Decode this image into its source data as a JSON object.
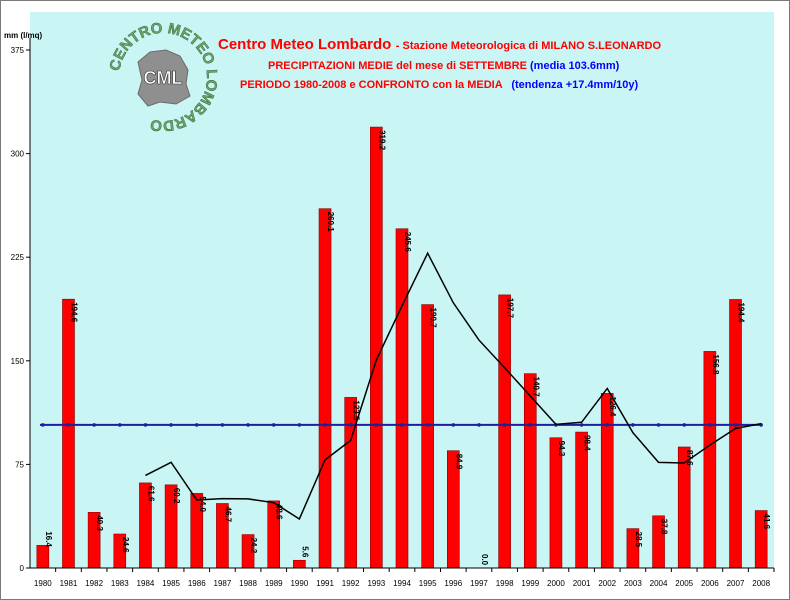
{
  "header": {
    "org": "Centro Meteo Lombardo",
    "station": "- Stazione Meteorologica di MILANO S.LEONARDO",
    "subtitle": "PRECIPITAZIONI MEDIE del mese di SETTEMBRE",
    "media_note": "(media 103.6mm)",
    "period": "PERIODO 1980-2008 e CONFRONTO con la MEDIA",
    "trend_note": "(tendenza +17.4mm/10y)"
  },
  "logo": {
    "ring_text": "CENTRO METEO LOMBARDO",
    "center_text": "CML"
  },
  "colors": {
    "bars": "#ff0000",
    "bar_outline": "#8b0000",
    "average_line": "#1f1f9e",
    "moving_avg": "#000000",
    "plot_bg": "#c9f5f4",
    "title_red": "#ff0000",
    "title_blue": "#0000ff"
  },
  "chart_data": {
    "type": "bar",
    "ylabel": "mm (l/mq)",
    "ylim": [
      0,
      375
    ],
    "yticks": [
      0,
      75,
      150,
      225,
      300,
      375
    ],
    "grid": false,
    "categories": [
      "1980",
      "1981",
      "1982",
      "1983",
      "1984",
      "1985",
      "1986",
      "1987",
      "1988",
      "1989",
      "1990",
      "1991",
      "1992",
      "1993",
      "1994",
      "1995",
      "1996",
      "1997",
      "1998",
      "1999",
      "2000",
      "2001",
      "2002",
      "2003",
      "2004",
      "2005",
      "2006",
      "2007",
      "2008"
    ],
    "values": [
      16.4,
      194.6,
      40.3,
      24.6,
      61.6,
      60.2,
      54.0,
      46.7,
      24.2,
      48.6,
      5.6,
      260.1,
      123.5,
      319.2,
      245.6,
      190.7,
      84.9,
      0.0,
      197.7,
      140.7,
      94.3,
      98.4,
      126.4,
      28.5,
      37.8,
      87.6,
      156.8,
      194.4,
      41.6
    ],
    "value_labels": [
      "16.4",
      "194.6",
      "40.3",
      "24.6",
      "61.6",
      "60.2",
      "54.0",
      "46.7",
      "24.2",
      "48.6",
      "5.6",
      "260.1",
      "123.5",
      "319.2",
      "245.6",
      "190.7",
      "84.9",
      "0.0",
      "197.7",
      "140.7",
      "94.3",
      "98.4",
      "126.4",
      "28.5",
      "37.8",
      "87.6",
      "156.8",
      "194.4",
      "41.6"
    ],
    "average": 103.6,
    "moving_average": {
      "categories": [
        "1984",
        "1985",
        "1986",
        "1987",
        "1988",
        "1989",
        "1990",
        "1991",
        "1992",
        "1993",
        "1994",
        "1995",
        "1996",
        "1997",
        "1998",
        "1999",
        "2000",
        "2001",
        "2002",
        "2003",
        "2004",
        "2005",
        "2006",
        "2007",
        "2008"
      ],
      "values": [
        67.0,
        76.5,
        49.2,
        50.2,
        50.0,
        47.3,
        35.5,
        78.3,
        92.4,
        150.6,
        189.7,
        227.9,
        192.0,
        165.0,
        145.0,
        124.5,
        104.0,
        105.5,
        130.0,
        98.0,
        76.5,
        76.0,
        89.0,
        101.0,
        104.5
      ]
    }
  }
}
